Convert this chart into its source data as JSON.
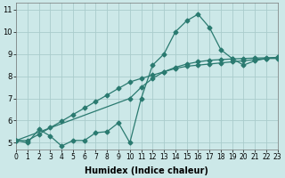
{
  "xlabel": "Humidex (Indice chaleur)",
  "bg_color": "#cce8e8",
  "grid_color": "#aacccc",
  "line_color": "#2a7a70",
  "line1_x": [
    0,
    1,
    2,
    3,
    4,
    5,
    6,
    7,
    8,
    9,
    10,
    11,
    12,
    13,
    14,
    15,
    16,
    17,
    18,
    19,
    20,
    21,
    22,
    23
  ],
  "line1_y": [
    5.1,
    5.0,
    5.6,
    5.3,
    4.85,
    5.1,
    5.1,
    5.45,
    5.5,
    5.9,
    5.0,
    7.0,
    8.5,
    9.0,
    10.0,
    10.5,
    10.8,
    10.2,
    9.2,
    8.8,
    8.5,
    8.7,
    8.8,
    8.8
  ],
  "line2_x": [
    0,
    10,
    11,
    12,
    13,
    14,
    15,
    16,
    17,
    18,
    19,
    20,
    21,
    22,
    23
  ],
  "line2_y": [
    5.1,
    7.0,
    7.5,
    7.9,
    8.2,
    8.4,
    8.55,
    8.65,
    8.72,
    8.75,
    8.78,
    8.8,
    8.82,
    8.83,
    8.85
  ],
  "line3_x": [
    0,
    1,
    2,
    3,
    4,
    5,
    6,
    7,
    8,
    9,
    10,
    11,
    12,
    13,
    14,
    15,
    16,
    17,
    18,
    19,
    20,
    21,
    22,
    23
  ],
  "line3_y": [
    5.1,
    5.1,
    5.38,
    5.68,
    5.97,
    6.27,
    6.56,
    6.86,
    7.15,
    7.45,
    7.74,
    7.9,
    8.05,
    8.2,
    8.35,
    8.45,
    8.5,
    8.55,
    8.6,
    8.65,
    8.7,
    8.75,
    8.8,
    8.85
  ],
  "xlim": [
    0,
    23
  ],
  "ylim": [
    4.7,
    11.3
  ],
  "xticks": [
    0,
    1,
    2,
    3,
    4,
    5,
    6,
    7,
    8,
    9,
    10,
    11,
    12,
    13,
    14,
    15,
    16,
    17,
    18,
    19,
    20,
    21,
    22,
    23
  ],
  "yticks": [
    5,
    6,
    7,
    8,
    9,
    10,
    11
  ],
  "xlabel_fontsize": 7,
  "tick_fontsize": 5.5
}
